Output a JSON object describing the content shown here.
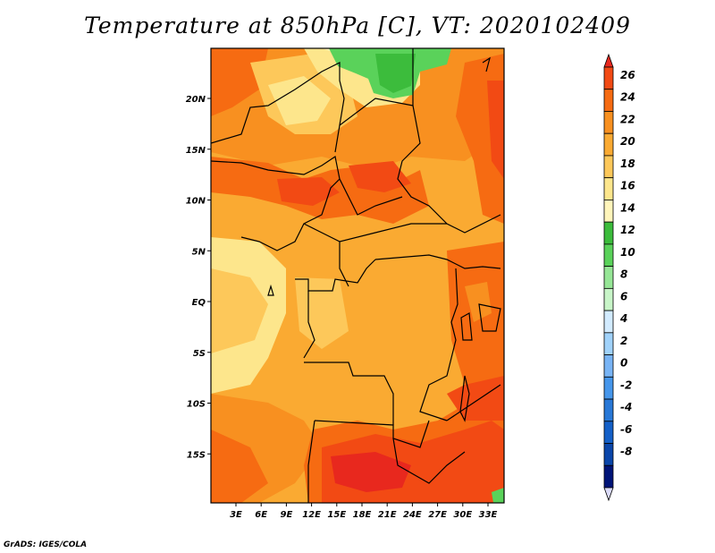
{
  "title": "Temperature at 850hPa [C], VT: 2020102409",
  "credit": "GrADS: IGES/COLA",
  "map": {
    "lat_ticks": [
      "20N",
      "15N",
      "10N",
      "5N",
      "EQ",
      "5S",
      "10S",
      "15S"
    ],
    "lon_ticks": [
      "3E",
      "6E",
      "9E",
      "12E",
      "15E",
      "18E",
      "21E",
      "24E",
      "27E",
      "30E",
      "33E"
    ],
    "lat_values": [
      20,
      15,
      10,
      5,
      0,
      -5,
      -10,
      -15
    ],
    "lon_values": [
      3,
      6,
      9,
      12,
      15,
      18,
      21,
      24,
      27,
      30,
      33
    ]
  },
  "colorbar": {
    "levels": [
      "26",
      "24",
      "22",
      "20",
      "18",
      "16",
      "14",
      "12",
      "10",
      "8",
      "6",
      "4",
      "2",
      "0",
      "-2",
      "-4",
      "-6",
      "-8"
    ],
    "colors": [
      "#e8281e",
      "#f24a14",
      "#f66b12",
      "#f89020",
      "#faaa32",
      "#fdc85a",
      "#fde68c",
      "#fff5bb",
      "#3cbc3c",
      "#5ad25a",
      "#96e696",
      "#c8f5c8",
      "#d2ebff",
      "#a0d2fa",
      "#78b4f5",
      "#4696eb",
      "#2878d7",
      "#1460c8",
      "#0a46aa",
      "#001478",
      "#dcdcfa"
    ]
  }
}
